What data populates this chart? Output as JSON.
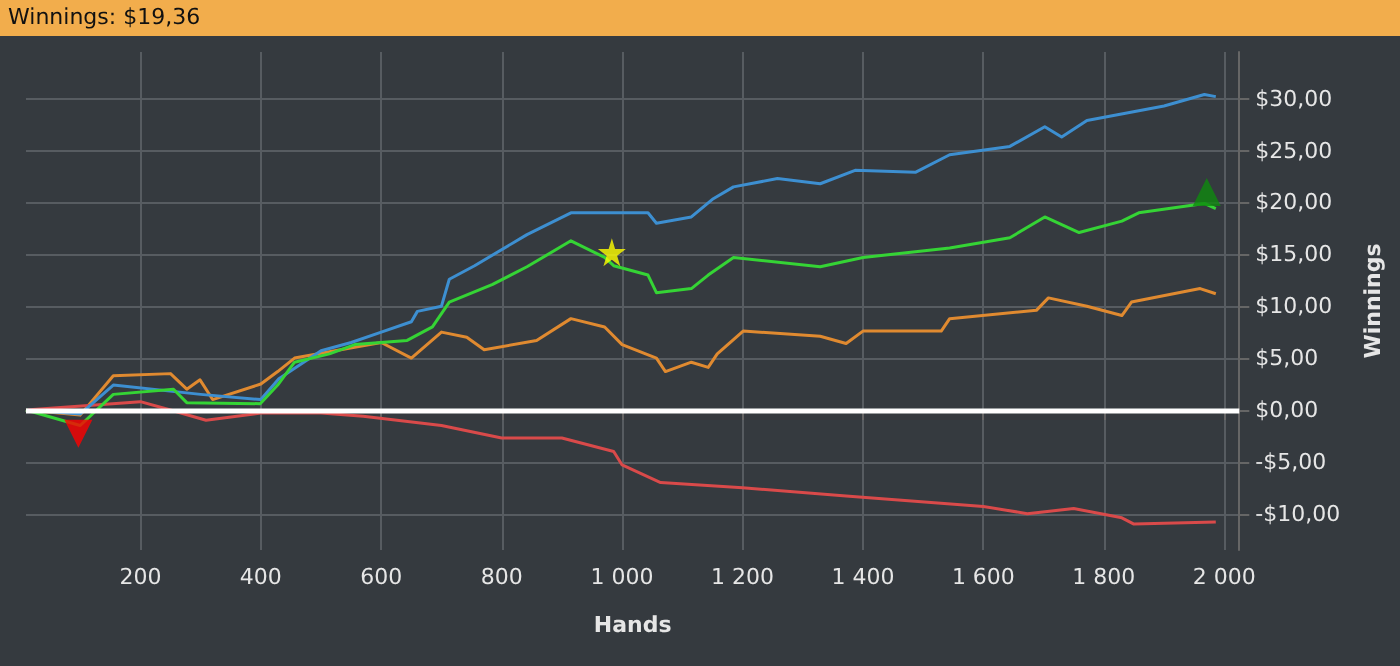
{
  "chart_data": {
    "type": "line",
    "title": "Winnings: $19,36",
    "xlabel": "Hands",
    "ylabel": "Winnings",
    "xlim": [
      10,
      2025
    ],
    "ylim": [
      -13.5,
      34.5
    ],
    "xticks": [
      200,
      400,
      600,
      800,
      {
        "value": 1000,
        "label": "1 000"
      },
      {
        "value": 1200,
        "label": "1 200"
      },
      {
        "value": 1400,
        "label": "1 400"
      },
      {
        "value": 1600,
        "label": "1 600"
      },
      {
        "value": 1800,
        "label": "1 800"
      },
      {
        "value": 2000,
        "label": "2 000"
      }
    ],
    "yticks": [
      {
        "value": -10,
        "label": "-$10,00"
      },
      {
        "value": -5,
        "label": "-$5,00"
      },
      {
        "value": 0,
        "label": "$0,00"
      },
      {
        "value": 5,
        "label": "$5,00"
      },
      {
        "value": 10,
        "label": "$10,00"
      },
      {
        "value": 15,
        "label": "$15,00"
      },
      {
        "value": 20,
        "label": "$20,00"
      },
      {
        "value": 25,
        "label": "$25,00"
      },
      {
        "value": 30,
        "label": "$30,00"
      }
    ],
    "grid": true,
    "marker": "none",
    "line_style": "solid",
    "ref_lines": [
      {
        "axis": "y",
        "value": 0,
        "color": "#ffffff"
      }
    ],
    "series": [
      {
        "color": "#e08a30",
        "x": [
          10,
          100,
          155,
          250,
          277,
          299,
          320,
          400,
          428,
          456,
          514,
          600,
          650,
          700,
          742,
          771,
          858,
          915,
          971,
          1000,
          1057,
          1072,
          1115,
          1143,
          1158,
          1201,
          1329,
          1372,
          1400,
          1530,
          1544,
          1688,
          1708,
          1772,
          1830,
          1846,
          1960,
          1986
        ],
        "values": [
          0,
          -0.5,
          3.3,
          3.5,
          2,
          2.9,
          1,
          2.5,
          3.7,
          5,
          5.6,
          6.5,
          5,
          7.5,
          7,
          5.8,
          6.7,
          8.8,
          8,
          6.3,
          5,
          3.7,
          4.6,
          4.1,
          5.4,
          7.6,
          7.1,
          6.4,
          7.6,
          7.6,
          8.8,
          9.6,
          10.8,
          10,
          9.1,
          10.4,
          11.7,
          11.2
        ]
      },
      {
        "color": "#d94a4a",
        "x": [
          10,
          200,
          250,
          309,
          400,
          500,
          570,
          700,
          800,
          900,
          986,
          1000,
          1064,
          1200,
          1372,
          1600,
          1673,
          1750,
          1830,
          1850,
          1986
        ],
        "values": [
          0,
          0.8,
          0,
          -1,
          -0.3,
          -0.3,
          -0.6,
          -1.5,
          -2.7,
          -2.7,
          -4,
          -5.3,
          -7,
          -7.5,
          -8.3,
          -9.3,
          -10,
          -9.5,
          -10.4,
          -11,
          -10.8
        ]
      },
      {
        "color": "#3d8fd1",
        "x": [
          10,
          100,
          155,
          300,
          400,
          430,
          500,
          550,
          600,
          650,
          660,
          700,
          713,
          755,
          842,
          915,
          1043,
          1057,
          1115,
          1150,
          1185,
          1258,
          1329,
          1387,
          1487,
          1544,
          1644,
          1702,
          1730,
          1772,
          1900,
          1967,
          1986
        ],
        "values": [
          0,
          -0.4,
          2.4,
          1.5,
          1,
          3,
          5.7,
          6.5,
          7.5,
          8.5,
          9.5,
          10,
          12.6,
          13.9,
          16.9,
          19,
          19,
          18,
          18.6,
          20.3,
          21.5,
          22.3,
          21.8,
          23.1,
          22.9,
          24.6,
          25.4,
          27.3,
          26.3,
          27.9,
          29.3,
          30.4,
          30.2
        ]
      },
      {
        "color": "#35d435",
        "x": [
          10,
          100,
          155,
          255,
          277,
          399,
          428,
          456,
          514,
          556,
          643,
          685,
          713,
          785,
          842,
          915,
          971,
          986,
          1043,
          1057,
          1115,
          1143,
          1185,
          1329,
          1400,
          1544,
          1644,
          1702,
          1759,
          1830,
          1858,
          1967,
          1986
        ],
        "values": [
          0,
          -1.5,
          1.5,
          2,
          0.7,
          0.6,
          2.4,
          4.6,
          5.4,
          6.3,
          6.7,
          8,
          10.4,
          12.1,
          13.8,
          16.3,
          14.7,
          13.9,
          13,
          11.3,
          11.7,
          13,
          14.7,
          13.8,
          14.7,
          15.6,
          16.6,
          18.6,
          17.1,
          18.2,
          19,
          19.9,
          19.4
        ]
      },
      {
        "type": "scatter",
        "marker": "triangle",
        "color": "#ff0000",
        "x": [
          97
        ],
        "values": [
          -2.3
        ]
      },
      {
        "type": "scatter",
        "marker": "star",
        "color": "#ffff00",
        "x": [
          983
        ],
        "values": [
          15.2
        ]
      },
      {
        "type": "scatter",
        "marker": "triangle",
        "color": "#0f8a0f",
        "x": [
          1971
        ],
        "values": [
          21
        ]
      }
    ]
  }
}
